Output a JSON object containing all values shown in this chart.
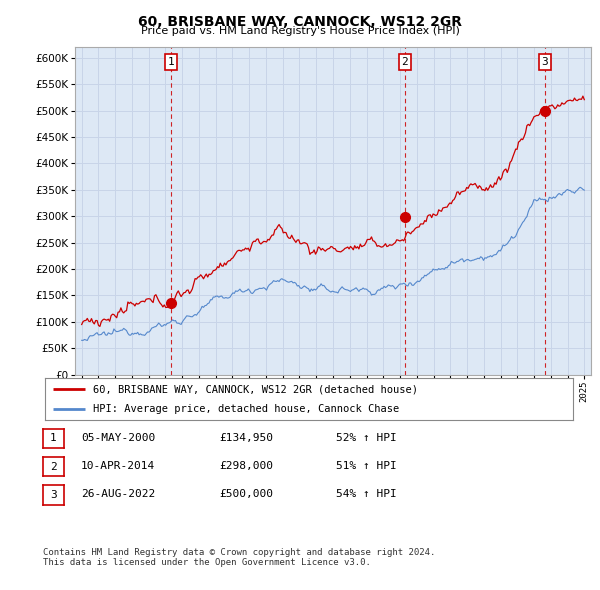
{
  "title": "60, BRISBANE WAY, CANNOCK, WS12 2GR",
  "subtitle": "Price paid vs. HM Land Registry's House Price Index (HPI)",
  "legend_line1": "60, BRISBANE WAY, CANNOCK, WS12 2GR (detached house)",
  "legend_line2": "HPI: Average price, detached house, Cannock Chase",
  "sale_color": "#cc0000",
  "hpi_color": "#5588cc",
  "vline_color": "#cc0000",
  "chart_bg": "#dde8f5",
  "ylim": [
    0,
    620000
  ],
  "yticks": [
    0,
    50000,
    100000,
    150000,
    200000,
    250000,
    300000,
    350000,
    400000,
    450000,
    500000,
    550000,
    600000
  ],
  "sales": [
    {
      "date_num": 2000.35,
      "price": 134950,
      "label": "1"
    },
    {
      "date_num": 2014.28,
      "price": 298000,
      "label": "2"
    },
    {
      "date_num": 2022.65,
      "price": 500000,
      "label": "3"
    }
  ],
  "table_rows": [
    {
      "num": "1",
      "date": "05-MAY-2000",
      "price": "£134,950",
      "change": "52% ↑ HPI"
    },
    {
      "num": "2",
      "date": "10-APR-2014",
      "price": "£298,000",
      "change": "51% ↑ HPI"
    },
    {
      "num": "3",
      "date": "26-AUG-2022",
      "price": "£500,000",
      "change": "54% ↑ HPI"
    }
  ],
  "footer": "Contains HM Land Registry data © Crown copyright and database right 2024.\nThis data is licensed under the Open Government Licence v3.0.",
  "bg_color": "#ffffff",
  "grid_color": "#c8d4e8"
}
